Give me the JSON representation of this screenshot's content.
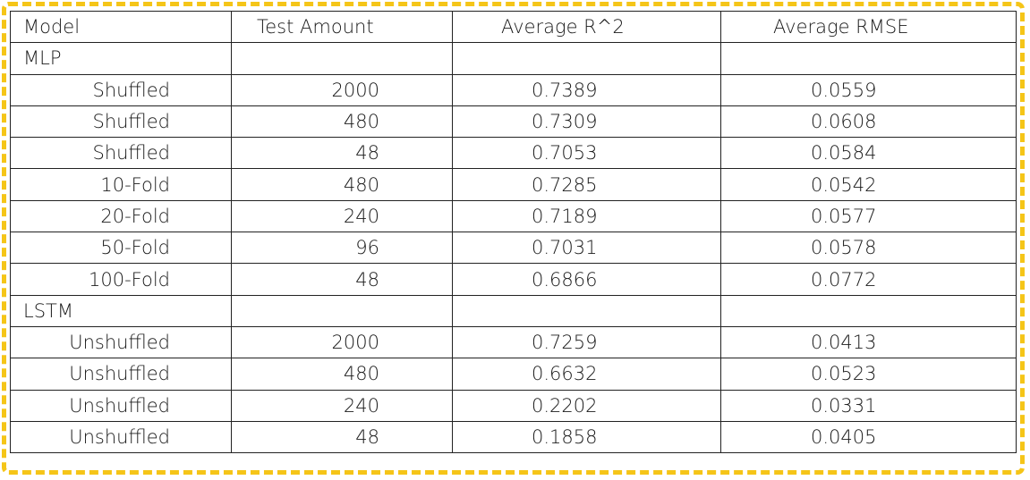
{
  "headers": {
    "model": "Model",
    "test_amount": "Test Amount",
    "avg_r2": "Average R^2",
    "avg_rmse": "Average RMSE"
  },
  "groups": [
    {
      "label": "MLP",
      "rows": [
        {
          "method": "Shuffled",
          "test_amount": "2000",
          "r2": "0.7389",
          "rmse": "0.0559"
        },
        {
          "method": "Shuffled",
          "test_amount": "480",
          "r2": "0.7309",
          "rmse": "0.0608"
        },
        {
          "method": "Shuffled",
          "test_amount": "48",
          "r2": "0.7053",
          "rmse": "0.0584"
        },
        {
          "method": "10-Fold",
          "test_amount": "480",
          "r2": "0.7285",
          "rmse": "0.0542"
        },
        {
          "method": "20-Fold",
          "test_amount": "240",
          "r2": "0.7189",
          "rmse": "0.0577"
        },
        {
          "method": "50-Fold",
          "test_amount": "96",
          "r2": "0.7031",
          "rmse": "0.0578"
        },
        {
          "method": "100-Fold",
          "test_amount": "48",
          "r2": "0.6866",
          "rmse": "0.0772"
        }
      ]
    },
    {
      "label": "LSTM",
      "rows": [
        {
          "method": "Unshuffled",
          "test_amount": "2000",
          "r2": "0.7259",
          "rmse": "0.0413"
        },
        {
          "method": "Unshuffled",
          "test_amount": "480",
          "r2": "0.6632",
          "rmse": "0.0523"
        },
        {
          "method": "Unshuffled",
          "test_amount": "240",
          "r2": "0.2202",
          "rmse": "0.0331"
        },
        {
          "method": "Unshuffled",
          "test_amount": "48",
          "r2": "0.1858",
          "rmse": "0.0405"
        }
      ]
    }
  ],
  "colors": {
    "frame_border": "#f5c518",
    "grid_line": "#222222",
    "text": "#1a1a1a"
  }
}
